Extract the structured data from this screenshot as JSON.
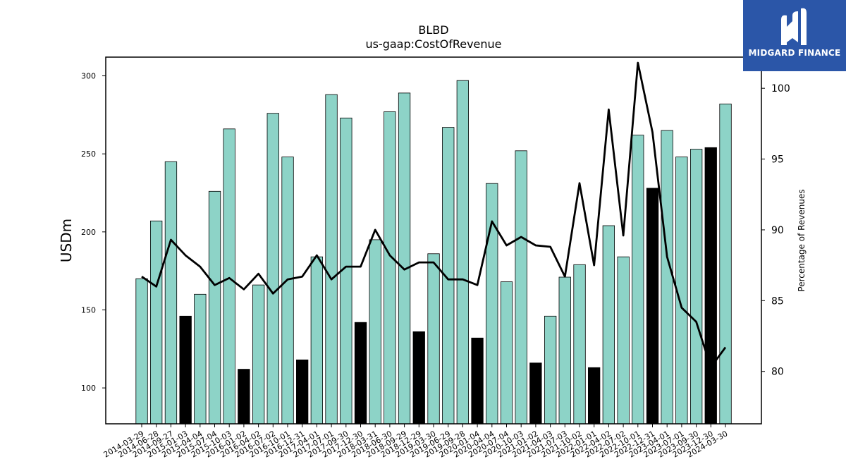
{
  "chart_data": {
    "type": "bar",
    "title": "BLBD",
    "subtitle": "us-gaap:CostOfRevenue",
    "ylabel": "USDm",
    "y2label": "Percentage of Revenues",
    "ylim": [
      77,
      312
    ],
    "y2lim": [
      76.3,
      102.2
    ],
    "yticks": [
      100,
      150,
      200,
      250,
      300
    ],
    "y2ticks": [
      80,
      85,
      90,
      95,
      100
    ],
    "bar_color": "#8dd3c7",
    "highlight_color": "#000000",
    "line_color": "#000000",
    "categories": [
      "2014-03-29",
      "2014-06-28",
      "2014-09-27",
      "2015-01-03",
      "2015-04-04",
      "2015-07-04",
      "2015-10-03",
      "2016-01-02",
      "2016-04-02",
      "2016-07-02",
      "2016-10-01",
      "2016-12-31",
      "2017-04-01",
      "2017-07-01",
      "2017-09-30",
      "2017-12-30",
      "2018-03-31",
      "2018-06-30",
      "2018-09-29",
      "2018-12-29",
      "2019-03-30",
      "2019-06-29",
      "2019-09-28",
      "2020-01-04",
      "2020-04-04",
      "2020-07-04",
      "2020-10-03",
      "2021-01-02",
      "2021-04-03",
      "2021-07-03",
      "2021-10-02",
      "2022-01-01",
      "2022-04-02",
      "2022-07-02",
      "2022-10-01",
      "2022-12-31",
      "2023-04-01",
      "2023-07-01",
      "2023-09-30",
      "2023-12-30",
      "2024-03-30"
    ],
    "values": [
      170,
      207,
      245,
      146,
      160,
      226,
      266,
      112,
      166,
      276,
      248,
      118,
      184,
      288,
      273,
      142,
      195,
      277,
      289,
      136,
      186,
      267,
      297,
      132,
      231,
      168,
      252,
      116,
      146,
      171,
      179,
      113,
      204,
      184,
      262,
      228,
      265,
      248,
      253,
      254,
      282
    ],
    "highlight": [
      false,
      false,
      false,
      true,
      false,
      false,
      false,
      true,
      false,
      false,
      false,
      true,
      false,
      false,
      false,
      true,
      false,
      false,
      false,
      true,
      false,
      false,
      false,
      true,
      false,
      false,
      false,
      true,
      false,
      false,
      false,
      true,
      false,
      false,
      false,
      true,
      false,
      false,
      false,
      true,
      false
    ],
    "percent_of_revenues": [
      86.7,
      86.0,
      89.3,
      88.2,
      87.4,
      86.1,
      86.6,
      85.8,
      86.9,
      85.5,
      86.5,
      86.7,
      88.2,
      86.5,
      87.4,
      87.4,
      90.0,
      88.2,
      87.2,
      87.7,
      87.7,
      86.5,
      86.5,
      86.1,
      90.6,
      88.9,
      89.5,
      88.9,
      88.8,
      86.7,
      93.3,
      87.5,
      98.5,
      89.6,
      101.8,
      96.9,
      88.1,
      84.5,
      83.5,
      80.3,
      81.7
    ]
  },
  "logo": {
    "text": "MIDGARD FINANCE",
    "icon": "midgard-m-icon"
  }
}
